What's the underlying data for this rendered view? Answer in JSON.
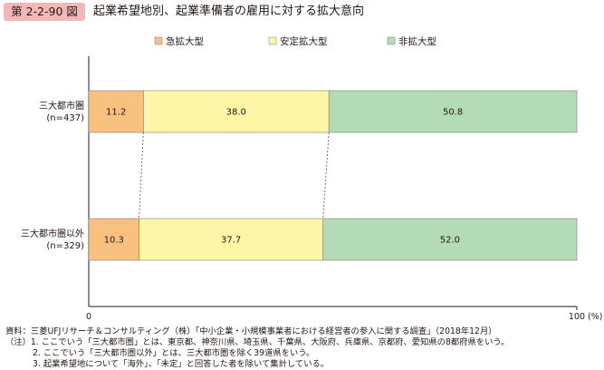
{
  "figure": {
    "number": "第 2-2-90 図",
    "title": "起業希望地別、起業準備者の雇用に対する拡大意向"
  },
  "colors": {
    "badge": "#f3b7b8",
    "series": [
      "#f8c17f",
      "#fcf6a6",
      "#b3dbb6"
    ],
    "bar_border": "#7d7d7d",
    "axis": "#231815"
  },
  "chart_data": {
    "type": "bar",
    "orientation": "horizontal",
    "stacked": true,
    "title": "",
    "categories": [
      {
        "name": "三大都市圏",
        "n": "(n=437)"
      },
      {
        "name": "三大都市圏以外",
        "n": "(n=329)"
      }
    ],
    "series": [
      {
        "name": "急拡大型",
        "values": [
          11.2,
          10.3
        ]
      },
      {
        "name": "安定拡大型",
        "values": [
          38.0,
          37.7
        ]
      },
      {
        "name": "非拡大型",
        "values": [
          50.8,
          52.0
        ]
      }
    ],
    "value_labels": [
      [
        "11.2",
        "38.0",
        "50.8"
      ],
      [
        "10.3",
        "37.7",
        "52.0"
      ]
    ],
    "xlim": [
      0,
      100
    ],
    "x_ticks": [
      "0",
      "100"
    ],
    "x_unit": "(%)",
    "legend_position": "top",
    "connector_lines": true,
    "grid": false
  },
  "notes": [
    "資料：三菱UFJリサーチ＆コンサルティング（株）「中小企業・小規模事業者における経営者の参入に関する調査」（2018年12月）",
    "（注）1. ここでいう「三大都市圏」とは、東京都、神奈川県、埼玉県、千葉県、大阪府、兵庫県、京都府、愛知県の8都府県をいう。",
    "2. ここでいう「三大都市圏以外」とは、三大都市圏を除く39道県をいう。",
    "3. 起業希望地について「海外」、「未定」と回答した者を除いて集計している。"
  ]
}
